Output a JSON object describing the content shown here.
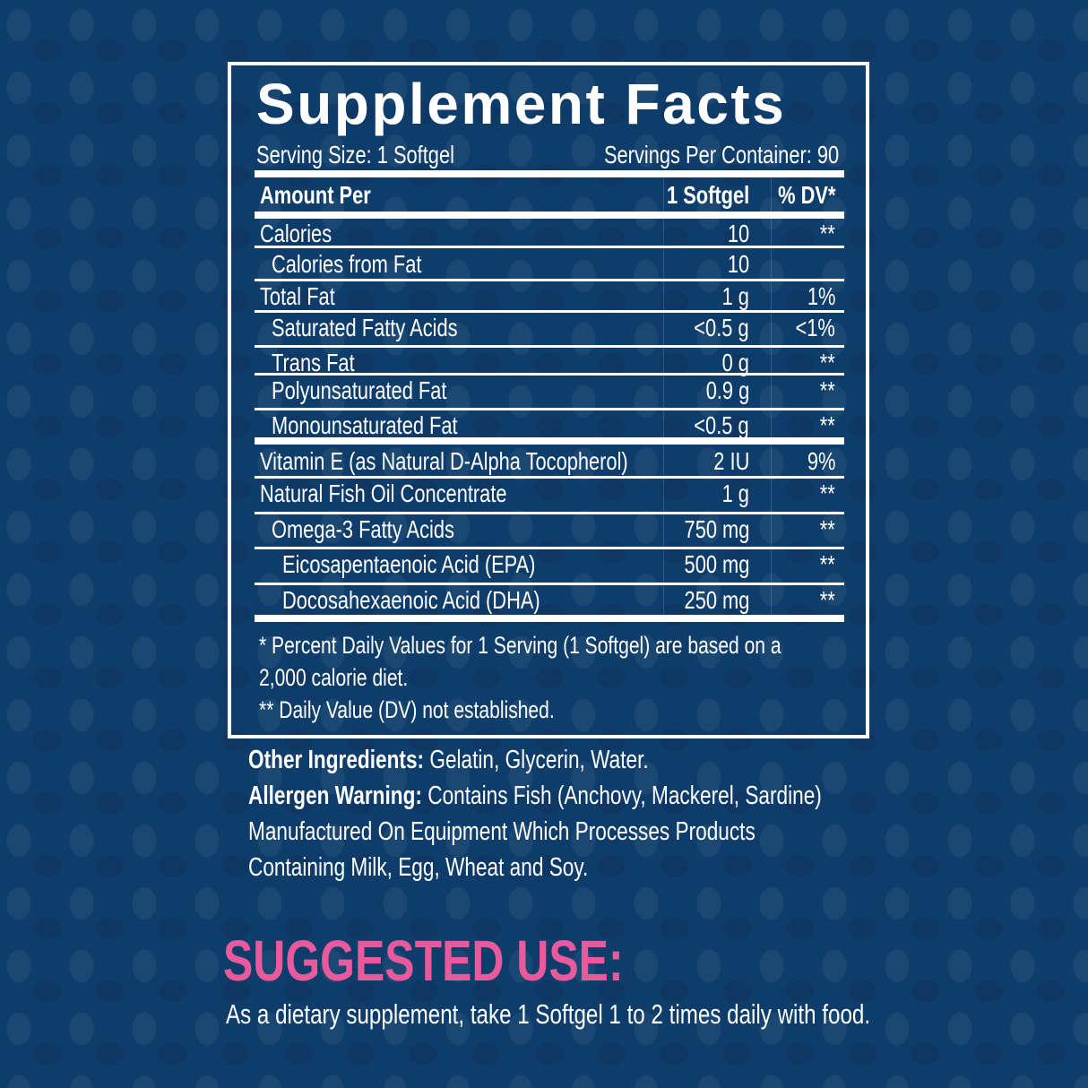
{
  "colors": {
    "background": "#0f3d6b",
    "accent": "#e85a9c",
    "text": "#ffffff"
  },
  "facts": {
    "title": "Supplement Facts",
    "serving_size": "Serving Size: 1 Softgel",
    "servings_per_container": "Servings Per Container: 90",
    "header": {
      "name": "Amount Per",
      "amount": "1 Softgel",
      "dv": "% DV*"
    },
    "rows": [
      {
        "name": "Calories",
        "amount": "10",
        "dv": "**",
        "indent": 0
      },
      {
        "name": "Calories from Fat",
        "amount": "10",
        "dv": "",
        "indent": 1
      },
      {
        "name": "Total Fat",
        "amount": "1 g",
        "dv": "1%",
        "indent": 0
      },
      {
        "name": "Saturated Fatty Acids",
        "amount": "<0.5 g",
        "dv": "<1%",
        "indent": 1
      },
      {
        "name": "Trans Fat",
        "amount": "0 g",
        "dv": "**",
        "indent": 1
      },
      {
        "name": "Polyunsaturated Fat",
        "amount": "0.9 g",
        "dv": "**",
        "indent": 1
      },
      {
        "name": "Monounsaturated Fat",
        "amount": "<0.5 g",
        "dv": "**",
        "indent": 1
      },
      {
        "name": "Vitamin E (as Natural D-Alpha Tocopherol)",
        "amount": "2 IU",
        "dv": "9%",
        "indent": 0
      },
      {
        "name": "Natural Fish Oil Concentrate",
        "amount": "1 g",
        "dv": "**",
        "indent": 0
      },
      {
        "name": "Omega-3 Fatty Acids",
        "amount": "750 mg",
        "dv": "**",
        "indent": 1
      },
      {
        "name": "Eicosapentaenoic Acid (EPA)",
        "amount": "500 mg",
        "dv": "**",
        "indent": 2
      },
      {
        "name": "Docosahexaenoic Acid (DHA)",
        "amount": "250 mg",
        "dv": "**",
        "indent": 2
      }
    ],
    "footnotes": [
      "* Percent Daily Values for 1 Serving (1 Softgel) are based on a",
      "2,000 calorie diet.",
      "** Daily Value (DV) not established."
    ]
  },
  "other_ingredients": {
    "label": "Other Ingredients:",
    "text": " Gelatin, Glycerin, Water."
  },
  "allergen": {
    "label": "Allergen Warning:",
    "text": " Contains Fish (Anchovy, Mackerel, Sardine)",
    "line2": "Manufactured On Equipment Which Processes Products",
    "line3": "Containing Milk, Egg, Wheat and Soy."
  },
  "suggested_use": {
    "title": "SUGGESTED USE:",
    "text": "As a dietary supplement, take 1 Softgel 1 to 2 times daily with food."
  }
}
